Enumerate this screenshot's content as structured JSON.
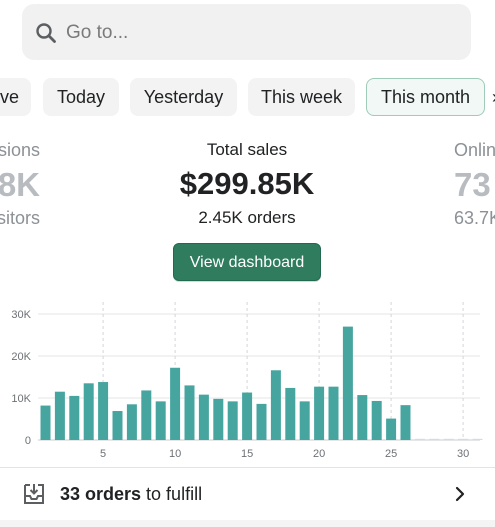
{
  "search": {
    "placeholder": "Go to..."
  },
  "date_filters": {
    "items": [
      "ve",
      "Today",
      "Yesterday",
      "This week",
      "This month"
    ],
    "selected": "This month",
    "more_glyph": "›"
  },
  "metrics": {
    "left": {
      "label": "sions",
      "value": "8K",
      "sub": "sitors"
    },
    "center": {
      "label": "Total sales",
      "value": "$299.85K",
      "sub": "2.45K orders"
    },
    "right": {
      "label": "Onlin",
      "value": "73",
      "sub": "63.7K"
    }
  },
  "view_dashboard_label": "View dashboard",
  "chart_data": {
    "type": "bar",
    "x": [
      1,
      2,
      3,
      4,
      5,
      6,
      7,
      8,
      9,
      10,
      11,
      12,
      13,
      14,
      15,
      16,
      17,
      18,
      19,
      20,
      21,
      22,
      23,
      24,
      25,
      26,
      27,
      28,
      29,
      30,
      31
    ],
    "values": [
      8200,
      11500,
      10500,
      13500,
      13800,
      6900,
      8500,
      11800,
      9200,
      17200,
      13000,
      10800,
      9800,
      9200,
      11300,
      8600,
      16600,
      12400,
      9200,
      12700,
      12700,
      27000,
      10700,
      9300,
      5100,
      8300,
      0,
      0,
      0,
      0,
      0
    ],
    "xticks": [
      "5",
      "10",
      "15",
      "20",
      "25",
      "30"
    ],
    "yticks": [
      "0",
      "10K",
      "20K",
      "30K"
    ],
    "ylim": [
      0,
      30000
    ],
    "grid": true,
    "bar_color": "#47a5a0"
  },
  "bottom": {
    "count_text": "33 orders",
    "rest_text": " to fulfill"
  }
}
